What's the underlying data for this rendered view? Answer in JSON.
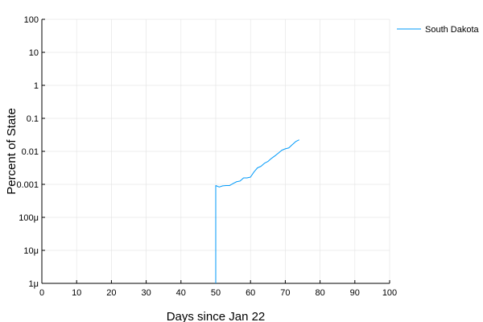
{
  "chart_data": {
    "type": "line",
    "title": "",
    "xlabel": "Days since Jan 22",
    "ylabel": "Percent of State",
    "xlim": [
      0,
      100
    ],
    "ylim": [
      1e-06,
      100
    ],
    "yscale": "log",
    "grid": true,
    "legend_position": "top-right",
    "x_ticks": [
      0,
      10,
      20,
      30,
      40,
      50,
      60,
      70,
      80,
      90,
      100
    ],
    "x_tick_labels": [
      "0",
      "10",
      "20",
      "30",
      "40",
      "50",
      "60",
      "70",
      "80",
      "90",
      "100"
    ],
    "y_ticks": [
      1e-06,
      1e-05,
      0.0001,
      0.001,
      0.01,
      0.1,
      1,
      10,
      100
    ],
    "y_tick_labels": [
      "1μ",
      "10μ",
      "100μ",
      "0.001",
      "0.01",
      "0.1",
      "1",
      "10",
      "100"
    ],
    "series": [
      {
        "name": "South Dakota",
        "color": "#009AFA",
        "x": [
          50,
          50,
          51,
          52,
          53,
          54,
          55,
          56,
          57,
          58,
          59,
          60,
          61,
          62,
          63,
          64,
          65,
          66,
          67,
          68,
          69,
          70,
          71,
          72,
          73,
          74
        ],
        "y": [
          1e-06,
          0.00092,
          0.00083,
          0.0009,
          0.00092,
          0.00092,
          0.00106,
          0.0012,
          0.00126,
          0.00157,
          0.00157,
          0.00166,
          0.00238,
          0.00316,
          0.00351,
          0.00435,
          0.00493,
          0.0061,
          0.00727,
          0.00881,
          0.0108,
          0.0119,
          0.0127,
          0.0159,
          0.0198,
          0.0223
        ]
      }
    ]
  }
}
